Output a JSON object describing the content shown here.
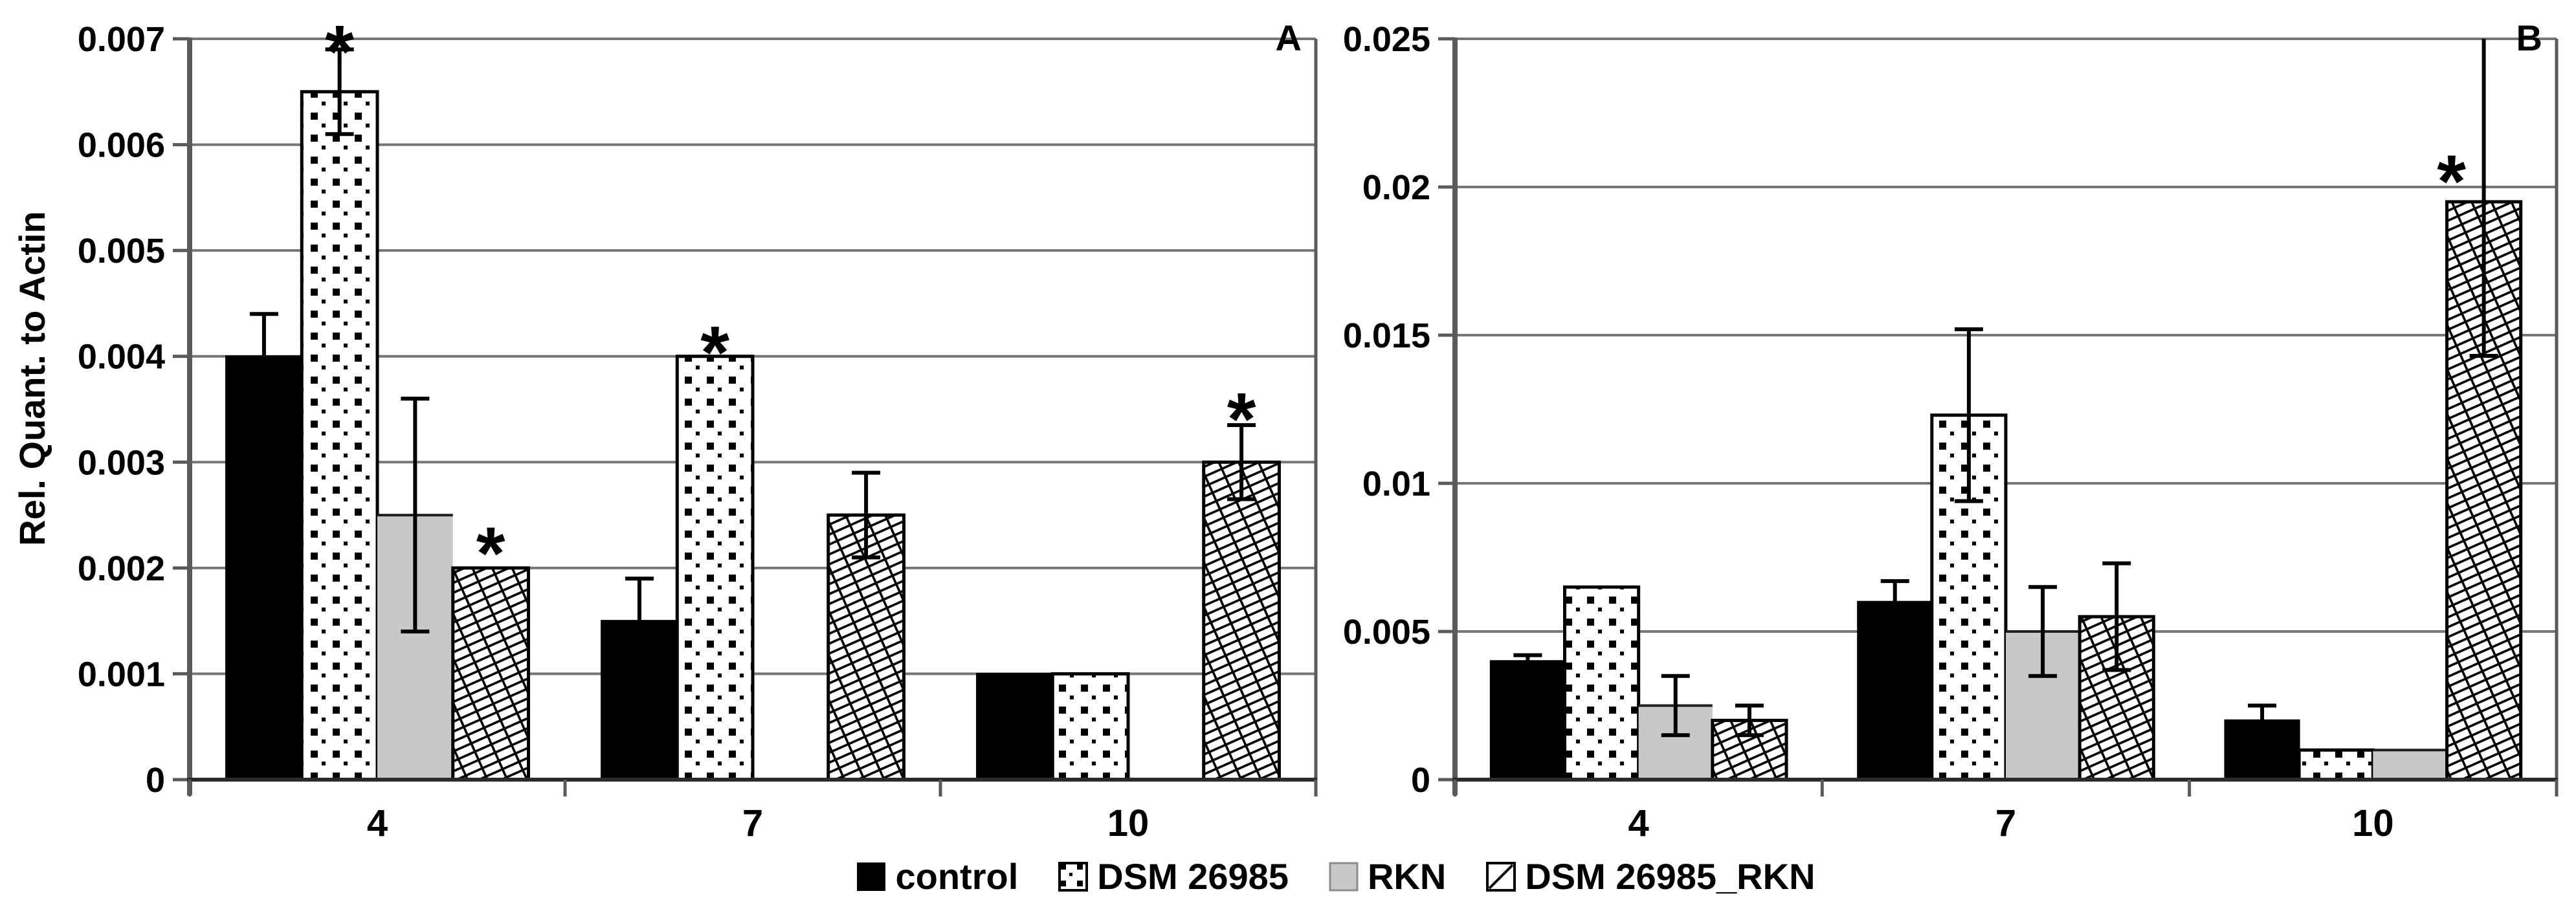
{
  "y_axis_title": "Rel. Quant. to Actin",
  "colors": {
    "bar_black": "#000000",
    "bar_gray": "#c8c8c8",
    "grid": "#767676",
    "axis": "#5a5a5a",
    "baseline": "#2b2b2b"
  },
  "legend": {
    "items": [
      {
        "label": "control",
        "swatch": "solid-black"
      },
      {
        "label": "DSM 26985",
        "swatch": "dotted"
      },
      {
        "label": "RKN",
        "swatch": "gray"
      },
      {
        "label": "DSM 26985_RKN",
        "swatch": "diagonal-hatch"
      }
    ]
  },
  "chart_data": [
    {
      "type": "bar",
      "panel_label": "A",
      "ylabel": "Rel. Quant. to Actin",
      "ylim": [
        0,
        0.007
      ],
      "ytick_labels": [
        "0",
        "0.001",
        "0.002",
        "0.003",
        "0.004",
        "0.005",
        "0.006",
        "0.007"
      ],
      "grid": true,
      "categories": [
        "4",
        "7",
        "10"
      ],
      "series": [
        "control",
        "DSM 26985",
        "RKN",
        "DSM 26985_RKN"
      ],
      "groups": [
        {
          "category": "4",
          "bars": [
            {
              "series": "control",
              "value": 0.004,
              "err_up": 0.0004,
              "err_dn": 0.0004,
              "star": false
            },
            {
              "series": "DSM 26985",
              "value": 0.0065,
              "err_up": 0.0004,
              "err_dn": 0.0004,
              "star": true,
              "star_value": 0.00702
            },
            {
              "series": "RKN",
              "value": 0.0025,
              "err_up": 0.0011,
              "err_dn": 0.0011,
              "star": false
            },
            {
              "series": "DSM 26985_RKN",
              "value": 0.002,
              "err_up": 0,
              "err_dn": 0,
              "star": true,
              "star_value": 0.00228
            }
          ]
        },
        {
          "category": "7",
          "bars": [
            {
              "series": "control",
              "value": 0.0015,
              "err_up": 0.0004,
              "err_dn": 0.0004,
              "star": false
            },
            {
              "series": "DSM 26985",
              "value": 0.004,
              "err_up": 0,
              "err_dn": 0,
              "star": true,
              "star_value": 0.00418
            },
            {
              "series": "RKN",
              "value": 0,
              "err_up": 0,
              "err_dn": 0,
              "star": false
            },
            {
              "series": "DSM 26985_RKN",
              "value": 0.0025,
              "err_up": 0.0004,
              "err_dn": 0.0004,
              "star": false
            }
          ]
        },
        {
          "category": "10",
          "bars": [
            {
              "series": "control",
              "value": 0.001,
              "err_up": 0,
              "err_dn": 0,
              "star": false
            },
            {
              "series": "DSM 26985",
              "value": 0.001,
              "err_up": 0,
              "err_dn": 0,
              "star": false
            },
            {
              "series": "RKN",
              "value": 0,
              "err_up": 0,
              "err_dn": 0,
              "star": false
            },
            {
              "series": "DSM 26985_RKN",
              "value": 0.003,
              "err_up": 0.00035,
              "err_dn": 0.00035,
              "star": true,
              "star_value": 0.00355
            }
          ]
        }
      ]
    },
    {
      "type": "bar",
      "panel_label": "B",
      "ylabel": "Rel. Quant. to Actin",
      "ylim": [
        0,
        0.025
      ],
      "ytick_labels": [
        "0",
        "0.005",
        "0.01",
        "0.015",
        "0.02",
        "0.025"
      ],
      "grid": true,
      "categories": [
        "4",
        "7",
        "10"
      ],
      "series": [
        "control",
        "DSM 26985",
        "RKN",
        "DSM 26985_RKN"
      ],
      "groups": [
        {
          "category": "4",
          "bars": [
            {
              "series": "control",
              "value": 0.004,
              "err_up": 0.0002,
              "err_dn": 0.0002,
              "star": false
            },
            {
              "series": "DSM 26985",
              "value": 0.0065,
              "err_up": 0,
              "err_dn": 0,
              "star": false
            },
            {
              "series": "RKN",
              "value": 0.0025,
              "err_up": 0.001,
              "err_dn": 0.001,
              "star": false
            },
            {
              "series": "DSM 26985_RKN",
              "value": 0.002,
              "err_up": 0.0005,
              "err_dn": 0.0005,
              "star": false
            }
          ]
        },
        {
          "category": "7",
          "bars": [
            {
              "series": "control",
              "value": 0.006,
              "err_up": 0.0007,
              "err_dn": 0.0007,
              "star": false
            },
            {
              "series": "DSM 26985",
              "value": 0.0123,
              "err_up": 0.0029,
              "err_dn": 0.0029,
              "star": false
            },
            {
              "series": "RKN",
              "value": 0.005,
              "err_up": 0.0015,
              "err_dn": 0.0015,
              "star": false
            },
            {
              "series": "DSM 26985_RKN",
              "value": 0.0055,
              "err_up": 0.0018,
              "err_dn": 0.0018,
              "star": false
            }
          ]
        },
        {
          "category": "10",
          "bars": [
            {
              "series": "control",
              "value": 0.002,
              "err_up": 0.0005,
              "err_dn": 0.0005,
              "star": false
            },
            {
              "series": "DSM 26985",
              "value": 0.001,
              "err_up": 0,
              "err_dn": 0,
              "star": false
            },
            {
              "series": "RKN",
              "value": 0.001,
              "err_up": 0,
              "err_dn": 0,
              "star": false
            },
            {
              "series": "DSM 26985_RKN",
              "value": 0.0195,
              "err_up": 0.006,
              "err_dn": 0.0052,
              "star": true,
              "star_value": 0.0207,
              "star_dx": -50
            }
          ]
        }
      ]
    }
  ]
}
